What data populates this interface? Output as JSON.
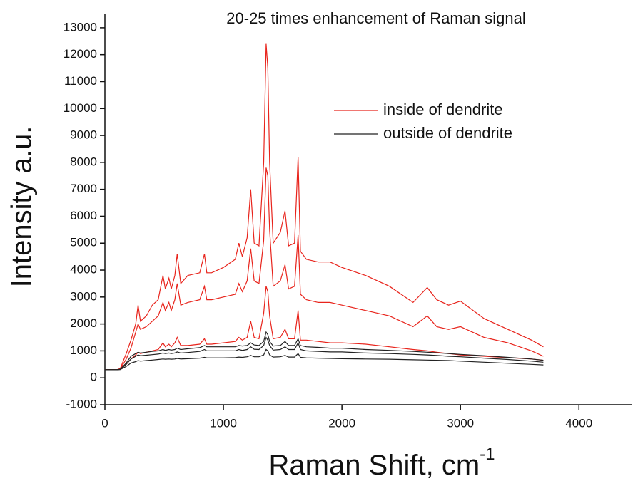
{
  "chart_data": {
    "type": "line",
    "title": "20-25 times enhancement of Raman signal",
    "x_label": "Raman Shift, cm",
    "x_label_superscript": "-1",
    "y_label": "Intensity a.u.",
    "xlim": [
      0,
      4450
    ],
    "ylim": [
      -1000,
      13500
    ],
    "xticks": [
      0,
      1000,
      2000,
      3000,
      4000
    ],
    "yticks": [
      -1000,
      0,
      1000,
      2000,
      3000,
      4000,
      5000,
      6000,
      7000,
      8000,
      9000,
      10000,
      11000,
      12000,
      13000
    ],
    "x": [
      0,
      100,
      130,
      180,
      220,
      260,
      280,
      300,
      350,
      400,
      450,
      490,
      510,
      540,
      560,
      590,
      610,
      640,
      700,
      800,
      840,
      860,
      900,
      1000,
      1100,
      1130,
      1160,
      1200,
      1230,
      1260,
      1300,
      1340,
      1360,
      1375,
      1390,
      1420,
      1480,
      1520,
      1550,
      1600,
      1630,
      1650,
      1700,
      1800,
      1900,
      2000,
      2200,
      2400,
      2600,
      2720,
      2800,
      2900,
      3000,
      3200,
      3400,
      3600,
      3700
    ],
    "series": [
      {
        "name": "inside of dendrite",
        "color": "#e8241c",
        "values": [
          300,
          300,
          350,
          900,
          1400,
          2000,
          2700,
          2100,
          2300,
          2700,
          2900,
          3800,
          3300,
          3700,
          3300,
          3800,
          4600,
          3500,
          3800,
          3900,
          4600,
          3900,
          3900,
          4100,
          4400,
          5000,
          4500,
          5200,
          7000,
          5000,
          4900,
          8000,
          12400,
          11500,
          8000,
          5000,
          5400,
          6200,
          4900,
          5000,
          8200,
          4700,
          4400,
          4300,
          4300,
          4100,
          3800,
          3400,
          2800,
          3350,
          2900,
          2700,
          2850,
          2200,
          1800,
          1400,
          1150
        ]
      },
      {
        "color": "#e8241c",
        "values": [
          300,
          300,
          330,
          700,
          1100,
          1700,
          2000,
          1800,
          1900,
          2100,
          2300,
          2800,
          2500,
          2800,
          2500,
          2900,
          3500,
          2700,
          2800,
          2900,
          3400,
          2900,
          2900,
          3000,
          3100,
          3500,
          3200,
          3600,
          4800,
          3600,
          3500,
          5100,
          7800,
          7500,
          5500,
          3400,
          3600,
          4200,
          3300,
          3400,
          5300,
          3100,
          2900,
          2800,
          2800,
          2700,
          2500,
          2300,
          1900,
          2300,
          1900,
          1800,
          1900,
          1500,
          1300,
          1000,
          800
        ]
      },
      {
        "color": "#e8241c",
        "values": [
          300,
          300,
          320,
          500,
          700,
          850,
          950,
          900,
          950,
          1000,
          1050,
          1300,
          1150,
          1250,
          1150,
          1300,
          1500,
          1200,
          1200,
          1250,
          1450,
          1250,
          1250,
          1300,
          1350,
          1500,
          1400,
          1500,
          2100,
          1500,
          1450,
          2400,
          3400,
          3200,
          2300,
          1450,
          1500,
          1800,
          1450,
          1450,
          2500,
          1400,
          1400,
          1350,
          1300,
          1300,
          1250,
          1150,
          1050,
          1000,
          950,
          900,
          850,
          800,
          750,
          700,
          650
        ]
      },
      {
        "name": "outside of dendrite",
        "color": "#222222",
        "values": [
          300,
          300,
          320,
          550,
          800,
          900,
          950,
          920,
          950,
          980,
          1000,
          1050,
          1020,
          1050,
          1030,
          1050,
          1100,
          1050,
          1080,
          1120,
          1200,
          1150,
          1150,
          1150,
          1150,
          1200,
          1180,
          1200,
          1300,
          1220,
          1200,
          1350,
          1700,
          1600,
          1350,
          1180,
          1200,
          1350,
          1200,
          1200,
          1450,
          1200,
          1150,
          1130,
          1100,
          1100,
          1050,
          1020,
          980,
          950,
          930,
          900,
          870,
          820,
          760,
          700,
          650
        ]
      },
      {
        "color": "#222222",
        "values": [
          300,
          300,
          310,
          500,
          700,
          800,
          850,
          820,
          840,
          860,
          880,
          920,
          900,
          920,
          900,
          920,
          960,
          920,
          940,
          980,
          1050,
          1000,
          1000,
          1000,
          1000,
          1050,
          1020,
          1050,
          1150,
          1060,
          1050,
          1200,
          1500,
          1400,
          1200,
          1030,
          1050,
          1150,
          1050,
          1050,
          1300,
          1050,
          1000,
          980,
          960,
          960,
          920,
          900,
          870,
          850,
          830,
          800,
          780,
          730,
          680,
          620,
          580
        ]
      },
      {
        "color": "#222222",
        "values": [
          300,
          300,
          310,
          420,
          550,
          600,
          640,
          620,
          640,
          660,
          680,
          700,
          690,
          700,
          690,
          700,
          720,
          700,
          710,
          730,
          760,
          740,
          740,
          740,
          750,
          770,
          760,
          780,
          830,
          780,
          780,
          850,
          1050,
          1000,
          850,
          770,
          780,
          830,
          770,
          770,
          900,
          760,
          740,
          730,
          720,
          710,
          700,
          690,
          670,
          660,
          650,
          640,
          620,
          580,
          540,
          500,
          480
        ]
      }
    ]
  }
}
